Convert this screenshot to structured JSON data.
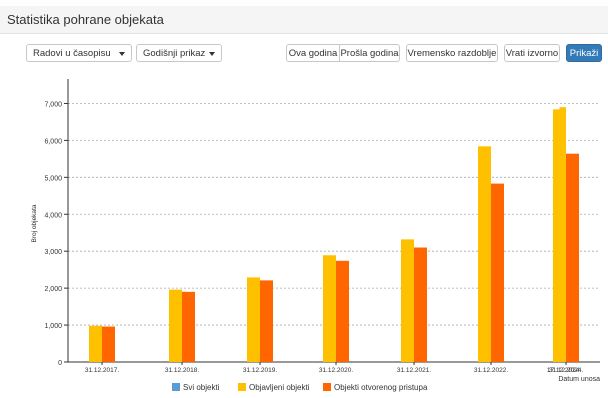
{
  "panel": {
    "title": "Statistika pohrane objekata"
  },
  "toolbar": {
    "type_select": "Radovi u časopisu",
    "view_select": "Godišnji prikaz",
    "this_year": "Ova godina",
    "last_year": "Prošla godina",
    "time_range": "Vremensko razdoblje",
    "reset": "Vrati izvorno",
    "show": "Prikaži"
  },
  "colors": {
    "all": "#5b9bd5",
    "published": "#ffc000",
    "open": "#ff6600"
  },
  "chart_data": {
    "type": "bar",
    "xlabel": "Datum unosa",
    "ylabel": "Broj objekata",
    "ylim": [
      0,
      7500
    ],
    "yticks": [
      0,
      1000,
      2000,
      3000,
      4000,
      5000,
      6000,
      7000
    ],
    "ytick_labels": [
      "0",
      "1,000",
      "2,000",
      "3,000",
      "4,000",
      "5,000",
      "6,000",
      "7,000"
    ],
    "grid": true,
    "legend": "bottom",
    "categories": [
      "31.12.2017.",
      "31.12.2018.",
      "31.12.2019.",
      "31.12.2020.",
      "31.12.2021.",
      "31.12.2022.",
      "31.12.2024."
    ],
    "extra_tick_label": "17.12.2024.",
    "series": [
      {
        "name": "Svi objekti",
        "values": [
          0,
          0,
          0,
          0,
          0,
          0,
          0
        ]
      },
      {
        "name": "Objavljeni objekti",
        "values": [
          980,
          1960,
          2290,
          2890,
          3320,
          5840,
          6900
        ]
      },
      {
        "name": "Objekti otvorenog pristupa",
        "values": [
          960,
          1900,
          2210,
          2740,
          3100,
          4830,
          5640
        ]
      }
    ],
    "last_group_split": {
      "published": [
        6840,
        6900
      ]
    }
  }
}
